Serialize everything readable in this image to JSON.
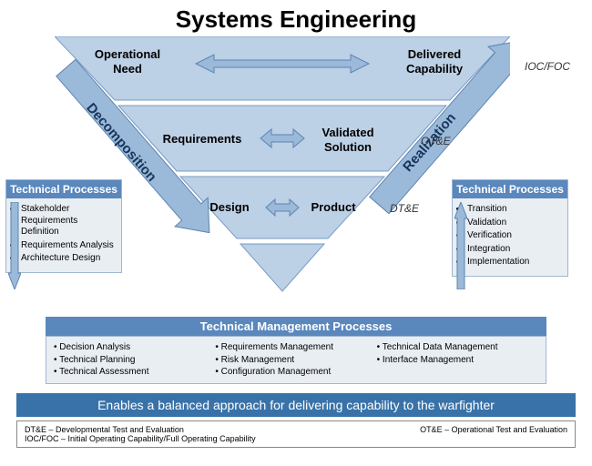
{
  "title": "Systems Engineering",
  "colors": {
    "triangle_fill": "#bcd0e6",
    "triangle_border": "#7a9bc4",
    "panel_bg": "#e9eef3",
    "panel_border": "#9fb7d0",
    "header_blue": "#5a87bc",
    "footer_blue": "#3972a8",
    "arrow_fill": "#9bb9d9",
    "arrow_stroke": "#5d84b0",
    "side_label": "#16365c"
  },
  "vee": {
    "tiers": [
      {
        "left_label": "Operational\nNeed",
        "right_label": "Delivered\nCapability",
        "annotation": "IOC/FOC"
      },
      {
        "left_label": "Requirements",
        "right_label": "Validated\nSolution",
        "annotation": "OT&E"
      },
      {
        "left_label": "Design",
        "right_label": "Product",
        "annotation": "DT&E"
      }
    ],
    "left_side": "Decomposition",
    "right_side": "Realization"
  },
  "tech_left": {
    "header": "Technical Processes",
    "items": [
      "Stakeholder Requirements Definition",
      "Requirements Analysis",
      "Architecture Design"
    ]
  },
  "tech_right": {
    "header": "Technical Processes",
    "items": [
      "Transition",
      "Validation",
      "Verification",
      "Integration",
      "Implementation"
    ]
  },
  "tmp": {
    "header": "Technical Management Processes",
    "col1": [
      "Decision Analysis",
      "Technical Planning",
      "Technical Assessment"
    ],
    "col2": [
      "Requirements Management",
      "Risk Management",
      "Configuration Management"
    ],
    "col3": [
      "Technical Data Management",
      "Interface Management"
    ]
  },
  "footer": "Enables a balanced approach for delivering capability to the warfighter",
  "legend": {
    "left1": "DT&E – Developmental Test and Evaluation",
    "left2": "IOC/FOC – Initial Operating Capability/Full Operating Capability",
    "right1": "OT&E – Operational Test and Evaluation"
  }
}
